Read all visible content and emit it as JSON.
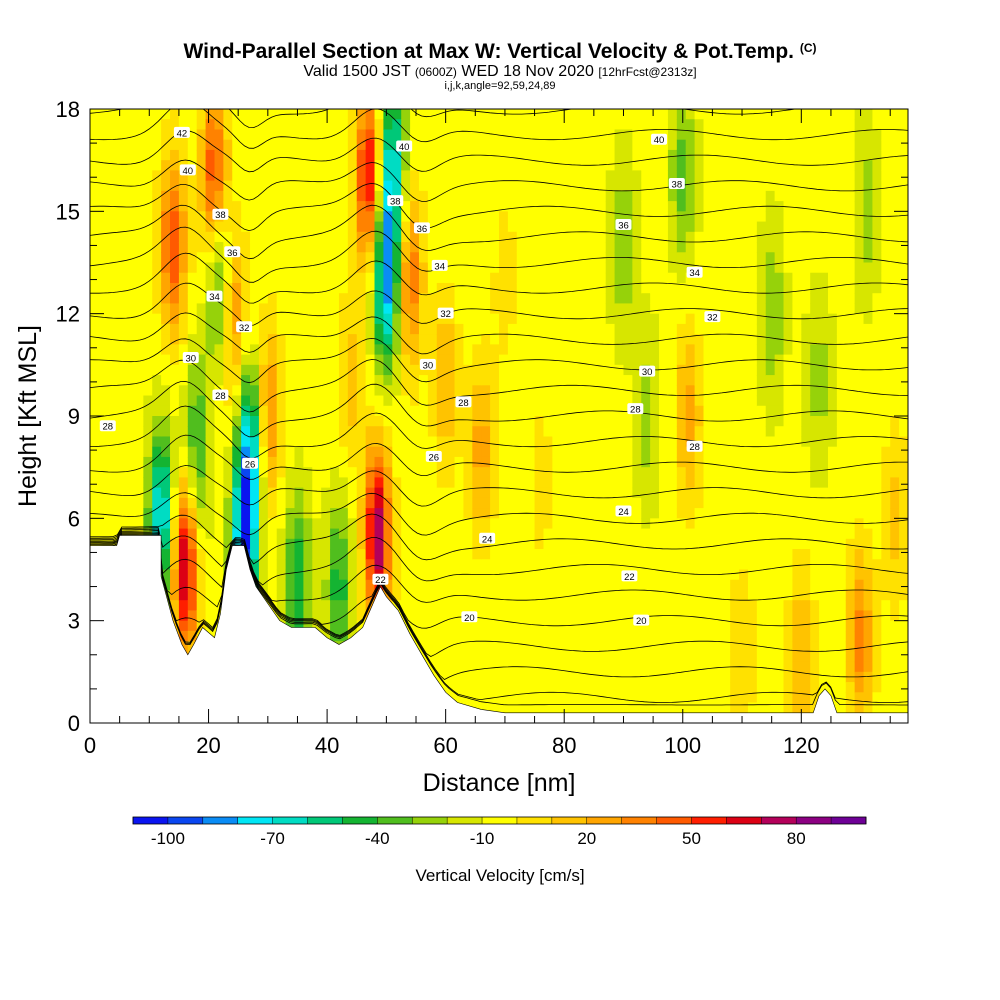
{
  "header": {
    "title": "Wind-Parallel Section at Max W: Vertical Velocity & Pot.Temp.",
    "copyright": "(C)",
    "valid_prefix": "Valid 1500 JST",
    "valid_utc": "(0600Z)",
    "valid_date": "WED 18 Nov 2020",
    "forecast": "[12hrFcst@2313z]",
    "indices": "i,j,k,angle=92,59,24,89"
  },
  "chart_data": {
    "type": "heatmap",
    "xlabel": "Distance [nm]",
    "ylabel": "Height [Kft MSL]",
    "xlim": [
      0,
      138
    ],
    "ylim": [
      0,
      18
    ],
    "x_ticks": [
      0,
      20,
      40,
      60,
      80,
      100,
      120
    ],
    "y_ticks": [
      0,
      3,
      6,
      9,
      12,
      15,
      18
    ],
    "grid": false,
    "colorbar": {
      "label": "Vertical Velocity [cm/s]",
      "tick_labels": [
        "-100",
        "-70",
        "-40",
        "-10",
        "20",
        "50",
        "80"
      ],
      "min": -110,
      "step": 10,
      "colors": [
        "#0a14f0",
        "#0a46f0",
        "#0a8cf5",
        "#00e6f5",
        "#00dcc3",
        "#00c878",
        "#14b432",
        "#50be1e",
        "#96d20a",
        "#d7e600",
        "#ffff00",
        "#ffe100",
        "#ffc300",
        "#ffa500",
        "#ff8200",
        "#ff5a00",
        "#ff1e00",
        "#dc0014",
        "#b4005a",
        "#8c0082",
        "#6e0096"
      ]
    },
    "background_w": -6,
    "w_features": [
      {
        "x": 14,
        "y": 14,
        "w": 55
      },
      {
        "x": 16,
        "y": 4.6,
        "w": 80
      },
      {
        "x": 12,
        "y": 6,
        "w": -70
      },
      {
        "x": 18,
        "y": 8,
        "w": -40
      },
      {
        "x": 21,
        "y": 16,
        "w": 60
      },
      {
        "x": 24,
        "y": 12,
        "w": 45
      },
      {
        "x": 22,
        "y": 13,
        "w": -50
      },
      {
        "x": 26,
        "y": 5,
        "w": -80
      },
      {
        "x": 27,
        "y": 8,
        "w": -70
      },
      {
        "x": 30,
        "y": 9,
        "w": 40
      },
      {
        "x": 35,
        "y": 4,
        "w": -45
      },
      {
        "x": 42,
        "y": 4,
        "w": -40
      },
      {
        "x": 44,
        "y": 10,
        "w": 20
      },
      {
        "x": 47,
        "y": 16,
        "w": 70
      },
      {
        "x": 48.5,
        "y": 5.5,
        "w": 85
      },
      {
        "x": 50,
        "y": 13,
        "w": -80
      },
      {
        "x": 51,
        "y": 16.5,
        "w": -60
      },
      {
        "x": 54,
        "y": 13,
        "w": 45
      },
      {
        "x": 60,
        "y": 10,
        "w": 25
      },
      {
        "x": 66,
        "y": 8,
        "w": 30
      },
      {
        "x": 70,
        "y": 13,
        "w": 10
      },
      {
        "x": 76,
        "y": 7,
        "w": 10
      },
      {
        "x": 90,
        "y": 14,
        "w": -25
      },
      {
        "x": 94,
        "y": 9,
        "w": -20
      },
      {
        "x": 100,
        "y": 16,
        "w": -30
      },
      {
        "x": 101,
        "y": 9,
        "w": 30
      },
      {
        "x": 115,
        "y": 12,
        "w": -25
      },
      {
        "x": 123,
        "y": 10,
        "w": -20
      },
      {
        "x": 131,
        "y": 15,
        "w": -20
      },
      {
        "x": 130,
        "y": 2.5,
        "w": 40
      },
      {
        "x": 120,
        "y": 2,
        "w": 25
      },
      {
        "x": 110,
        "y": 2,
        "w": 15
      },
      {
        "x": 136,
        "y": 6,
        "w": 20
      }
    ],
    "terrain": [
      [
        0,
        5.2
      ],
      [
        4.5,
        5.2
      ],
      [
        5,
        5.5
      ],
      [
        12,
        5.5
      ],
      [
        12,
        4.3
      ],
      [
        14,
        3
      ],
      [
        15.5,
        2.3
      ],
      [
        16.5,
        2
      ],
      [
        17.5,
        2.3
      ],
      [
        19,
        2.8
      ],
      [
        21,
        2.5
      ],
      [
        22,
        3.2
      ],
      [
        23,
        4.5
      ],
      [
        24,
        5.2
      ],
      [
        26,
        5.2
      ],
      [
        27,
        4.5
      ],
      [
        28,
        4
      ],
      [
        30,
        3.5
      ],
      [
        32,
        3
      ],
      [
        34,
        2.8
      ],
      [
        36,
        2.8
      ],
      [
        38,
        2.8
      ],
      [
        40,
        2.5
      ],
      [
        42,
        2.3
      ],
      [
        44,
        2.5
      ],
      [
        46,
        2.8
      ],
      [
        47,
        3.2
      ],
      [
        48,
        3.6
      ],
      [
        49,
        4
      ],
      [
        50,
        3.7
      ],
      [
        52,
        3.3
      ],
      [
        54,
        2.6
      ],
      [
        56,
        2
      ],
      [
        58,
        1.4
      ],
      [
        60,
        0.9
      ],
      [
        62,
        0.6
      ],
      [
        66,
        0.4
      ],
      [
        70,
        0.3
      ],
      [
        122,
        0.3
      ],
      [
        123,
        0.8
      ],
      [
        124,
        1
      ],
      [
        125,
        0.8
      ],
      [
        126,
        0.3
      ],
      [
        138,
        0.3
      ]
    ],
    "isentropes": {
      "levels": [
        19,
        20,
        21,
        22,
        23,
        24,
        25,
        26,
        27,
        28,
        29,
        30,
        31,
        32,
        33,
        34,
        35,
        36,
        37,
        38,
        39,
        40,
        41,
        42,
        43
      ],
      "labeled": [
        {
          "value": "20",
          "x": 64,
          "y": 3.1
        },
        {
          "value": "20",
          "x": 93,
          "y": 3
        },
        {
          "value": "22",
          "x": 49,
          "y": 4.2
        },
        {
          "value": "22",
          "x": 91,
          "y": 4.3
        },
        {
          "value": "24",
          "x": 67,
          "y": 5.4
        },
        {
          "value": "24",
          "x": 90,
          "y": 6.2
        },
        {
          "value": "26",
          "x": 27,
          "y": 7.6
        },
        {
          "value": "26",
          "x": 58,
          "y": 7.8
        },
        {
          "value": "28",
          "x": 3,
          "y": 8.7
        },
        {
          "value": "28",
          "x": 22,
          "y": 9.6
        },
        {
          "value": "28",
          "x": 63,
          "y": 9.4
        },
        {
          "value": "28",
          "x": 92,
          "y": 9.2
        },
        {
          "value": "28",
          "x": 102,
          "y": 8.1
        },
        {
          "value": "30",
          "x": 17,
          "y": 10.7
        },
        {
          "value": "30",
          "x": 57,
          "y": 10.5
        },
        {
          "value": "30",
          "x": 94,
          "y": 10.3
        },
        {
          "value": "32",
          "x": 26,
          "y": 11.6
        },
        {
          "value": "32",
          "x": 60,
          "y": 12
        },
        {
          "value": "32",
          "x": 105,
          "y": 11.9
        },
        {
          "value": "34",
          "x": 21,
          "y": 12.5
        },
        {
          "value": "34",
          "x": 59,
          "y": 13.4
        },
        {
          "value": "34",
          "x": 102,
          "y": 13.2
        },
        {
          "value": "36",
          "x": 24,
          "y": 13.8
        },
        {
          "value": "36",
          "x": 56,
          "y": 14.5
        },
        {
          "value": "36",
          "x": 90,
          "y": 14.6
        },
        {
          "value": "38",
          "x": 22,
          "y": 14.9
        },
        {
          "value": "38",
          "x": 51.5,
          "y": 15.3
        },
        {
          "value": "38",
          "x": 99,
          "y": 15.8
        },
        {
          "value": "40",
          "x": 16.5,
          "y": 16.2
        },
        {
          "value": "40",
          "x": 53,
          "y": 16.9
        },
        {
          "value": "40",
          "x": 96,
          "y": 17.1
        },
        {
          "value": "42",
          "x": 15.5,
          "y": 17.3
        }
      ]
    }
  }
}
